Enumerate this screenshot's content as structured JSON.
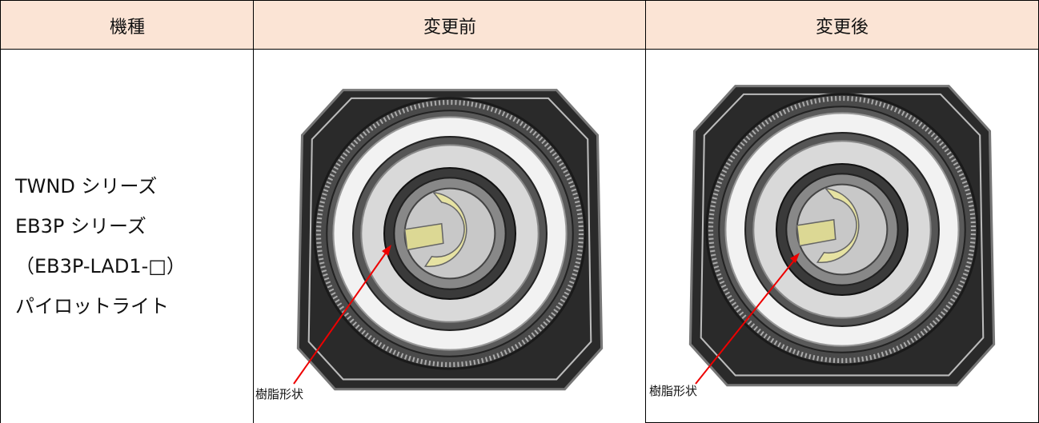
{
  "table": {
    "headers": [
      "機種",
      "変更前",
      "変更後"
    ],
    "rows": [
      {
        "model": [
          "TWND シリーズ",
          "EB3P シリーズ",
          "（EB3P-LAD1-□）",
          "パイロットライト"
        ],
        "before_note": "樹脂形状",
        "after_note": "樹脂形状"
      }
    ]
  }
}
